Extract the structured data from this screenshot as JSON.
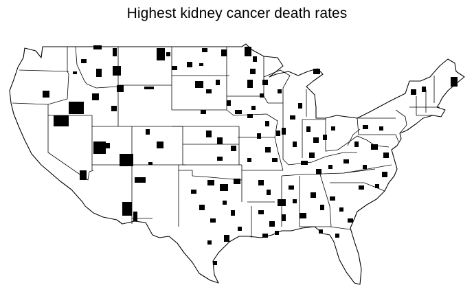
{
  "title": "Highest kidney cancer death rates",
  "colors": {
    "background": "#ffffff",
    "state_border": "#000000",
    "highlighted_county": "#000000"
  },
  "legend": null
}
